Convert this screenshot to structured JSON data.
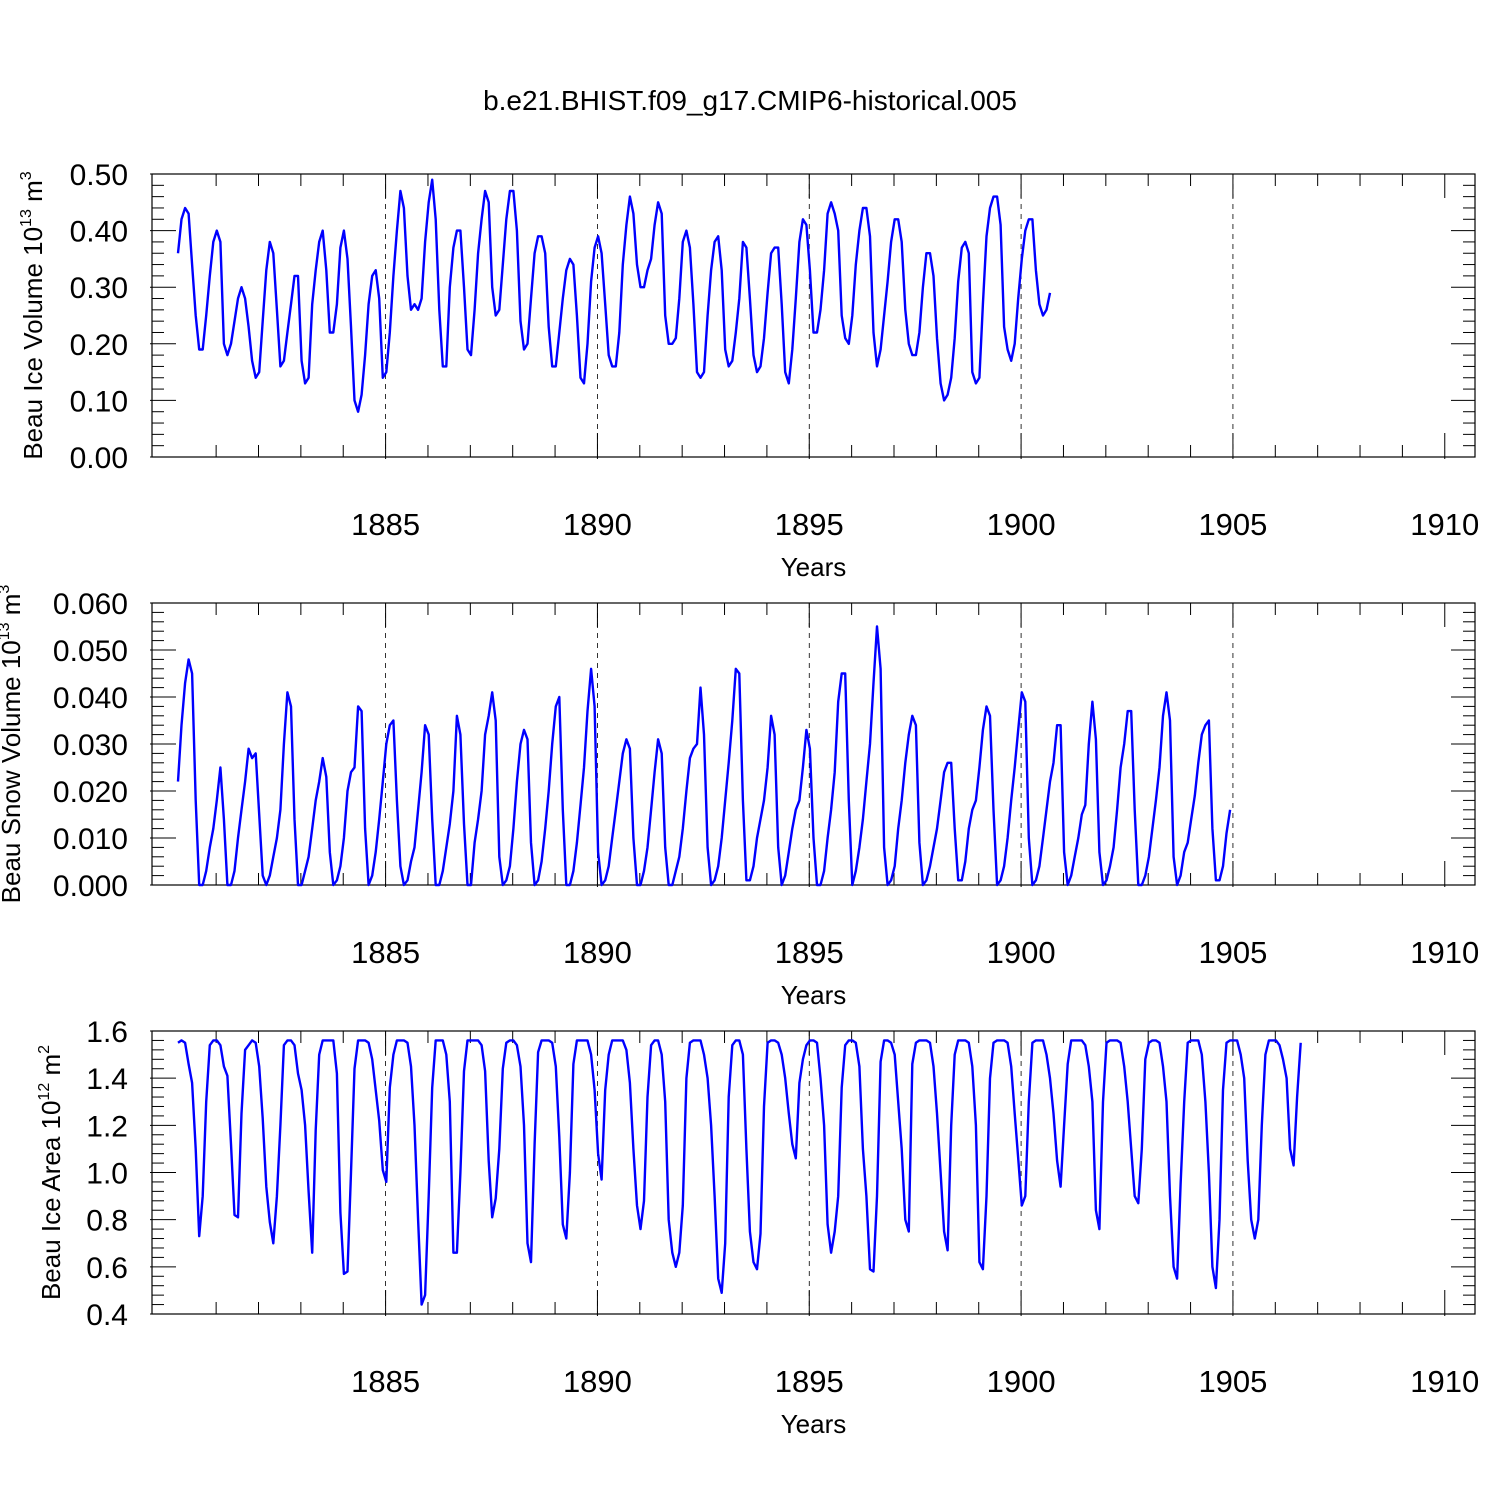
{
  "title": "b.e21.BHIST.f09_g17.CMIP6-historical.005",
  "colors": {
    "line": "#0000ff",
    "axis": "#000000"
  },
  "chart_data": [
    {
      "type": "line",
      "ylabel_main": "Beau Ice Volume 10",
      "ylabel_exp": "13",
      "ylabel_unit": " m",
      "ylabel_unit_exp": "3",
      "xlabel": "Years",
      "xlim": [
        1880.1,
        1910.1
      ],
      "ylim": [
        0,
        0.5
      ],
      "yticks": [
        "0.00",
        "0.10",
        "0.20",
        "0.30",
        "0.40",
        "0.50"
      ],
      "ytick_values": [
        0,
        0.1,
        0.2,
        0.3,
        0.4,
        0.5
      ],
      "xticks": [
        "1885",
        "1890",
        "1895",
        "1900",
        "1905",
        "1910"
      ],
      "xtick_values": [
        1885,
        1890,
        1895,
        1900,
        1905,
        1910
      ],
      "grid_x": [
        1885,
        1890,
        1895,
        1900,
        1905
      ],
      "series": [
        {
          "name": "Beau Ice Volume",
          "start": 1880.1,
          "step": 0.08333,
          "values": [
            0.36,
            0.42,
            0.44,
            0.43,
            0.34,
            0.25,
            0.19,
            0.19,
            0.25,
            0.32,
            0.38,
            0.4,
            0.38,
            0.2,
            0.18,
            0.2,
            0.24,
            0.28,
            0.3,
            0.28,
            0.23,
            0.17,
            0.14,
            0.15,
            0.24,
            0.33,
            0.38,
            0.36,
            0.26,
            0.16,
            0.17,
            0.22,
            0.27,
            0.32,
            0.32,
            0.17,
            0.13,
            0.14,
            0.27,
            0.33,
            0.38,
            0.4,
            0.33,
            0.22,
            0.22,
            0.27,
            0.37,
            0.4,
            0.35,
            0.23,
            0.1,
            0.08,
            0.11,
            0.18,
            0.27,
            0.32,
            0.33,
            0.28,
            0.14,
            0.15,
            0.22,
            0.32,
            0.4,
            0.47,
            0.44,
            0.32,
            0.26,
            0.27,
            0.26,
            0.28,
            0.38,
            0.45,
            0.49,
            0.42,
            0.26,
            0.16,
            0.16,
            0.3,
            0.37,
            0.4,
            0.4,
            0.3,
            0.19,
            0.18,
            0.26,
            0.36,
            0.42,
            0.47,
            0.45,
            0.3,
            0.25,
            0.26,
            0.34,
            0.42,
            0.47,
            0.47,
            0.4,
            0.24,
            0.19,
            0.2,
            0.28,
            0.36,
            0.39,
            0.39,
            0.36,
            0.23,
            0.16,
            0.16,
            0.22,
            0.28,
            0.33,
            0.35,
            0.34,
            0.25,
            0.14,
            0.13,
            0.2,
            0.31,
            0.37,
            0.39,
            0.36,
            0.27,
            0.18,
            0.16,
            0.16,
            0.22,
            0.34,
            0.41,
            0.46,
            0.43,
            0.34,
            0.3,
            0.3,
            0.33,
            0.35,
            0.41,
            0.45,
            0.43,
            0.25,
            0.2,
            0.2,
            0.21,
            0.28,
            0.38,
            0.4,
            0.37,
            0.27,
            0.15,
            0.14,
            0.15,
            0.25,
            0.33,
            0.38,
            0.39,
            0.33,
            0.19,
            0.16,
            0.17,
            0.22,
            0.28,
            0.38,
            0.37,
            0.28,
            0.18,
            0.15,
            0.16,
            0.21,
            0.29,
            0.36,
            0.37,
            0.37,
            0.27,
            0.15,
            0.13,
            0.19,
            0.28,
            0.38,
            0.42,
            0.41,
            0.33,
            0.22,
            0.22,
            0.26,
            0.33,
            0.43,
            0.45,
            0.43,
            0.4,
            0.25,
            0.21,
            0.2,
            0.25,
            0.34,
            0.4,
            0.44,
            0.44,
            0.39,
            0.22,
            0.16,
            0.19,
            0.25,
            0.31,
            0.38,
            0.42,
            0.42,
            0.38,
            0.26,
            0.2,
            0.18,
            0.18,
            0.22,
            0.3,
            0.36,
            0.36,
            0.32,
            0.21,
            0.13,
            0.1,
            0.11,
            0.14,
            0.21,
            0.31,
            0.37,
            0.38,
            0.36,
            0.15,
            0.13,
            0.14,
            0.27,
            0.39,
            0.44,
            0.46,
            0.46,
            0.41,
            0.23,
            0.19,
            0.17,
            0.2,
            0.28,
            0.35,
            0.4,
            0.42,
            0.42,
            0.33,
            0.27,
            0.25,
            0.26,
            0.29
          ]
        }
      ]
    },
    {
      "type": "line",
      "ylabel_main": "Beau Snow Volume 10",
      "ylabel_exp": "13",
      "ylabel_unit": " m",
      "ylabel_unit_exp": "3",
      "xlabel": "Years",
      "xlim": [
        1880.1,
        1910.1
      ],
      "ylim": [
        0,
        0.06
      ],
      "yticks": [
        "0.000",
        "0.010",
        "0.020",
        "0.030",
        "0.040",
        "0.050",
        "0.060"
      ],
      "ytick_values": [
        0,
        0.01,
        0.02,
        0.03,
        0.04,
        0.05,
        0.06
      ],
      "xticks": [
        "1885",
        "1890",
        "1895",
        "1900",
        "1905",
        "1910"
      ],
      "xtick_values": [
        1885,
        1890,
        1895,
        1900,
        1905,
        1910
      ],
      "grid_x": [
        1885,
        1890,
        1895,
        1900,
        1905
      ],
      "series": [
        {
          "name": "Beau Snow Volume",
          "start": 1880.1,
          "step": 0.08333,
          "values": [
            0.022,
            0.034,
            0.043,
            0.048,
            0.045,
            0.018,
            0.0,
            0.0,
            0.003,
            0.008,
            0.012,
            0.018,
            0.025,
            0.014,
            0.0,
            0.0,
            0.003,
            0.01,
            0.016,
            0.022,
            0.029,
            0.027,
            0.028,
            0.015,
            0.002,
            0.0,
            0.002,
            0.006,
            0.01,
            0.016,
            0.03,
            0.041,
            0.038,
            0.014,
            0.0,
            0.0,
            0.003,
            0.006,
            0.012,
            0.018,
            0.022,
            0.027,
            0.023,
            0.007,
            0.0,
            0.001,
            0.004,
            0.01,
            0.02,
            0.024,
            0.025,
            0.038,
            0.037,
            0.012,
            0.0,
            0.002,
            0.007,
            0.014,
            0.022,
            0.03,
            0.034,
            0.035,
            0.018,
            0.004,
            0.0,
            0.001,
            0.005,
            0.008,
            0.016,
            0.024,
            0.034,
            0.032,
            0.014,
            0.0,
            0.0,
            0.003,
            0.008,
            0.013,
            0.02,
            0.036,
            0.032,
            0.013,
            0.0,
            0.0,
            0.009,
            0.014,
            0.02,
            0.032,
            0.036,
            0.041,
            0.035,
            0.006,
            0.0,
            0.001,
            0.004,
            0.012,
            0.022,
            0.03,
            0.033,
            0.031,
            0.009,
            0.0,
            0.001,
            0.005,
            0.012,
            0.02,
            0.03,
            0.038,
            0.04,
            0.016,
            0.0,
            0.0,
            0.003,
            0.009,
            0.017,
            0.025,
            0.037,
            0.046,
            0.038,
            0.007,
            0.0,
            0.001,
            0.004,
            0.01,
            0.016,
            0.022,
            0.028,
            0.031,
            0.029,
            0.01,
            0.0,
            0.0,
            0.003,
            0.008,
            0.016,
            0.024,
            0.031,
            0.028,
            0.008,
            0.0,
            0.0,
            0.003,
            0.006,
            0.012,
            0.02,
            0.027,
            0.029,
            0.03,
            0.042,
            0.032,
            0.008,
            0.0,
            0.001,
            0.004,
            0.01,
            0.018,
            0.026,
            0.035,
            0.046,
            0.045,
            0.018,
            0.001,
            0.001,
            0.004,
            0.01,
            0.014,
            0.018,
            0.025,
            0.036,
            0.032,
            0.008,
            0.0,
            0.002,
            0.007,
            0.012,
            0.016,
            0.018,
            0.025,
            0.033,
            0.029,
            0.01,
            0.0,
            0.0,
            0.003,
            0.01,
            0.016,
            0.024,
            0.039,
            0.045,
            0.045,
            0.018,
            0.0,
            0.003,
            0.008,
            0.014,
            0.022,
            0.03,
            0.043,
            0.055,
            0.046,
            0.008,
            0.0,
            0.001,
            0.004,
            0.012,
            0.018,
            0.026,
            0.032,
            0.036,
            0.034,
            0.009,
            0.0,
            0.001,
            0.004,
            0.008,
            0.012,
            0.018,
            0.024,
            0.026,
            0.026,
            0.012,
            0.001,
            0.001,
            0.005,
            0.012,
            0.016,
            0.018,
            0.025,
            0.033,
            0.038,
            0.036,
            0.016,
            0.0,
            0.001,
            0.004,
            0.01,
            0.018,
            0.025,
            0.033,
            0.041,
            0.039,
            0.01,
            0.0,
            0.001,
            0.004,
            0.01,
            0.016,
            0.022,
            0.026,
            0.034,
            0.034,
            0.007,
            0.0,
            0.002,
            0.006,
            0.01,
            0.015,
            0.017,
            0.03,
            0.039,
            0.031,
            0.007,
            0.0,
            0.001,
            0.004,
            0.008,
            0.016,
            0.025,
            0.03,
            0.037,
            0.037,
            0.016,
            0.0,
            0.0,
            0.002,
            0.006,
            0.012,
            0.018,
            0.025,
            0.036,
            0.041,
            0.035,
            0.006,
            0.0,
            0.002,
            0.007,
            0.009,
            0.014,
            0.019,
            0.026,
            0.032,
            0.034,
            0.035,
            0.012,
            0.001,
            0.001,
            0.004,
            0.011,
            0.016
          ]
        }
      ]
    },
    {
      "type": "line",
      "ylabel_main": "Beau Ice Area 10",
      "ylabel_exp": "12",
      "ylabel_unit": " m",
      "ylabel_unit_exp": "2",
      "xlabel": "Years",
      "xlim": [
        1880.1,
        1910.1
      ],
      "ylim": [
        0.4,
        1.6
      ],
      "yticks": [
        "0.4",
        "0.6",
        "0.8",
        "1.0",
        "1.2",
        "1.4",
        "1.6"
      ],
      "ytick_values": [
        0.4,
        0.6,
        0.8,
        1.0,
        1.2,
        1.4,
        1.6
      ],
      "xticks": [
        "1885",
        "1890",
        "1895",
        "1900",
        "1905",
        "1910"
      ],
      "xtick_values": [
        1885,
        1890,
        1895,
        1900,
        1905,
        1910
      ],
      "grid_x": [
        1885,
        1890,
        1895,
        1900,
        1905
      ],
      "series": [
        {
          "name": "Beau Ice Area",
          "start": 1880.1,
          "step": 0.08333,
          "values": [
            1.55,
            1.56,
            1.55,
            1.46,
            1.38,
            1.1,
            0.73,
            0.9,
            1.3,
            1.54,
            1.56,
            1.56,
            1.54,
            1.45,
            1.41,
            1.12,
            0.82,
            0.81,
            1.25,
            1.52,
            1.54,
            1.56,
            1.55,
            1.45,
            1.23,
            0.94,
            0.79,
            0.7,
            0.9,
            1.2,
            1.54,
            1.56,
            1.56,
            1.54,
            1.42,
            1.35,
            1.2,
            0.92,
            0.66,
            1.18,
            1.5,
            1.56,
            1.56,
            1.56,
            1.56,
            1.42,
            0.83,
            0.57,
            0.58,
            1.0,
            1.44,
            1.56,
            1.56,
            1.56,
            1.55,
            1.48,
            1.35,
            1.22,
            1.01,
            0.96,
            1.36,
            1.5,
            1.56,
            1.56,
            1.56,
            1.55,
            1.45,
            1.2,
            0.8,
            0.44,
            0.48,
            0.9,
            1.36,
            1.56,
            1.56,
            1.56,
            1.5,
            1.3,
            0.66,
            0.66,
            1.0,
            1.43,
            1.56,
            1.56,
            1.56,
            1.56,
            1.54,
            1.43,
            1.05,
            0.81,
            0.89,
            1.1,
            1.44,
            1.55,
            1.56,
            1.56,
            1.54,
            1.45,
            1.2,
            0.7,
            0.62,
            1.12,
            1.51,
            1.56,
            1.56,
            1.56,
            1.55,
            1.45,
            1.15,
            0.78,
            0.72,
            1.0,
            1.46,
            1.56,
            1.56,
            1.56,
            1.56,
            1.5,
            1.35,
            1.08,
            0.97,
            1.35,
            1.5,
            1.56,
            1.56,
            1.56,
            1.56,
            1.52,
            1.38,
            1.1,
            0.86,
            0.76,
            0.88,
            1.32,
            1.54,
            1.56,
            1.56,
            1.5,
            1.3,
            0.8,
            0.66,
            0.6,
            0.66,
            0.86,
            1.4,
            1.55,
            1.56,
            1.56,
            1.56,
            1.5,
            1.4,
            1.2,
            0.9,
            0.55,
            0.49,
            0.7,
            1.32,
            1.54,
            1.56,
            1.56,
            1.5,
            1.1,
            0.75,
            0.62,
            0.59,
            0.74,
            1.28,
            1.55,
            1.56,
            1.56,
            1.55,
            1.5,
            1.4,
            1.25,
            1.12,
            1.06,
            1.38,
            1.48,
            1.54,
            1.56,
            1.56,
            1.55,
            1.4,
            1.2,
            0.78,
            0.66,
            0.75,
            0.9,
            1.36,
            1.54,
            1.56,
            1.56,
            1.55,
            1.45,
            1.1,
            0.9,
            0.59,
            0.58,
            0.9,
            1.47,
            1.56,
            1.56,
            1.55,
            1.5,
            1.3,
            1.1,
            0.8,
            0.75,
            1.46,
            1.55,
            1.56,
            1.56,
            1.56,
            1.55,
            1.45,
            1.25,
            1.0,
            0.75,
            0.67,
            1.2,
            1.5,
            1.56,
            1.56,
            1.56,
            1.55,
            1.45,
            1.2,
            0.62,
            0.59,
            0.9,
            1.4,
            1.55,
            1.56,
            1.56,
            1.56,
            1.55,
            1.45,
            1.25,
            1.06,
            0.86,
            0.9,
            1.3,
            1.55,
            1.56,
            1.56,
            1.56,
            1.5,
            1.4,
            1.25,
            1.05,
            0.94,
            1.2,
            1.46,
            1.56,
            1.56,
            1.56,
            1.56,
            1.54,
            1.45,
            1.3,
            0.84,
            0.76,
            1.3,
            1.55,
            1.56,
            1.56,
            1.56,
            1.55,
            1.45,
            1.3,
            1.1,
            0.9,
            0.87,
            1.1,
            1.48,
            1.55,
            1.56,
            1.56,
            1.55,
            1.45,
            1.3,
            0.9,
            0.6,
            0.55,
            0.95,
            1.3,
            1.55,
            1.56,
            1.56,
            1.56,
            1.5,
            1.3,
            1.0,
            0.6,
            0.51,
            0.8,
            1.35,
            1.55,
            1.56,
            1.56,
            1.56,
            1.5,
            1.4,
            1.05,
            0.8,
            0.72,
            0.8,
            1.2,
            1.5,
            1.56,
            1.56,
            1.56,
            1.54,
            1.48,
            1.4,
            1.1,
            1.03,
            1.32,
            1.55
          ]
        }
      ]
    }
  ]
}
